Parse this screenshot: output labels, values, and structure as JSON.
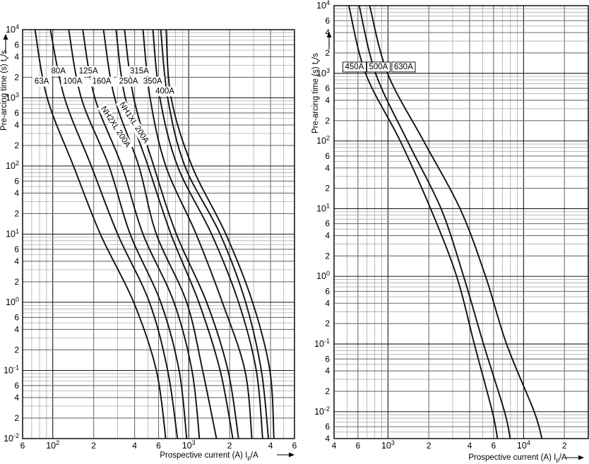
{
  "figure": {
    "description": "Fuse pre-arcing time vs prospective current characteristic curves",
    "background": "#ffffff",
    "curve_color": "#111111",
    "grid_major_color": "#1a1a1a",
    "grid_mid_color": "#6f6f6f",
    "grid_minor_color": "#9e9e9e"
  },
  "chart_data": [
    {
      "type": "line",
      "title": "",
      "xlabel": "Prospective current (A) I_p/A",
      "ylabel": "Pre-arcing time (s) t_v/s",
      "x_scale": "log",
      "y_scale": "log",
      "grid": "full log-log minor grid",
      "xlim": [
        60,
        6000
      ],
      "ylim": [
        0.01,
        10000
      ],
      "x_ticks": [
        {
          "v": 60,
          "l": "6"
        },
        {
          "v": 100,
          "l": "10^2"
        },
        {
          "v": 200,
          "l": "2"
        },
        {
          "v": 400,
          "l": "4"
        },
        {
          "v": 600,
          "l": "6"
        },
        {
          "v": 1000,
          "l": "10^3"
        },
        {
          "v": 2000,
          "l": "2"
        },
        {
          "v": 4000,
          "l": "4"
        },
        {
          "v": 6000,
          "l": "6"
        }
      ],
      "y_ticks": [
        {
          "v": 10000,
          "l": "10^4"
        },
        {
          "v": 6000,
          "l": "6"
        },
        {
          "v": 4000,
          "l": "4"
        },
        {
          "v": 2000,
          "l": "2"
        },
        {
          "v": 1000,
          "l": "10^3"
        },
        {
          "v": 600,
          "l": "6"
        },
        {
          "v": 400,
          "l": "4"
        },
        {
          "v": 200,
          "l": "2"
        },
        {
          "v": 100,
          "l": "10^2"
        },
        {
          "v": 60,
          "l": "6"
        },
        {
          "v": 40,
          "l": "4"
        },
        {
          "v": 20,
          "l": "2"
        },
        {
          "v": 10,
          "l": "10^1"
        },
        {
          "v": 6,
          "l": "6"
        },
        {
          "v": 4,
          "l": "4"
        },
        {
          "v": 2,
          "l": "2"
        },
        {
          "v": 1,
          "l": "10^0"
        },
        {
          "v": 0.6,
          "l": "6"
        },
        {
          "v": 0.4,
          "l": "4"
        },
        {
          "v": 0.2,
          "l": "2"
        },
        {
          "v": 0.1,
          "l": "10^-1"
        },
        {
          "v": 0.06,
          "l": "6"
        },
        {
          "v": 0.04,
          "l": "4"
        },
        {
          "v": 0.02,
          "l": "2"
        },
        {
          "v": 0.01,
          "l": "10^-2"
        }
      ],
      "series": [
        {
          "name": "63A",
          "points": [
            [
              74,
              10000
            ],
            [
              91,
              1000
            ],
            [
              142,
              100
            ],
            [
              224,
              10
            ],
            [
              394,
              1
            ],
            [
              578,
              0.1
            ],
            [
              678,
              0.01
            ]
          ]
        },
        {
          "name": "80A",
          "points": [
            [
              96,
              10000
            ],
            [
              122,
              1000
            ],
            [
              192,
              100
            ],
            [
              300,
              10
            ],
            [
              514,
              1
            ],
            [
              700,
              0.1
            ],
            [
              827,
              0.01
            ]
          ]
        },
        {
          "name": "100A",
          "points": [
            [
              131,
              10000
            ],
            [
              162,
              1000
            ],
            [
              259,
              100
            ],
            [
              371,
              10
            ],
            [
              623,
              1
            ],
            [
              850,
              0.1
            ],
            [
              966,
              0.01
            ]
          ]
        },
        {
          "name": "125A",
          "points": [
            [
              166,
              10000
            ],
            [
              204,
              1000
            ],
            [
              322,
              100
            ],
            [
              461,
              10
            ],
            [
              779,
              1
            ],
            [
              1056,
              0.1
            ],
            [
              1200,
              0.01
            ]
          ]
        },
        {
          "name": "160A",
          "points": [
            [
              236,
              10000
            ],
            [
              285,
              1000
            ],
            [
              429,
              100
            ],
            [
              578,
              10
            ],
            [
              966,
              1
            ],
            [
              1265,
              0.1
            ],
            [
              1600,
              0.01
            ]
          ]
        },
        {
          "name": "NH2XL 200A",
          "points": [
            [
              292,
              10000
            ],
            [
              341,
              1000
            ],
            [
              502,
              100
            ],
            [
              740,
              10
            ],
            [
              1186,
              1
            ],
            [
              1702,
              0.1
            ],
            [
              2111,
              0.01
            ]
          ]
        },
        {
          "name": "NH1XL 200A",
          "points": [
            [
              337,
              10000
            ],
            [
              394,
              1000
            ],
            [
              553,
              100
            ],
            [
              811,
              10
            ],
            [
              1355,
              1
            ],
            [
              1944,
              0.1
            ],
            [
              2327,
              0.01
            ]
          ]
        },
        {
          "name": "250A",
          "points": [
            [
              461,
              10000
            ],
            [
              520,
              1000
            ],
            [
              678,
              100
            ],
            [
              1134,
              10
            ],
            [
              1766,
              1
            ],
            [
              2590,
              0.1
            ],
            [
              2917,
              0.01
            ]
          ]
        },
        {
          "name": "315A",
          "points": [
            [
              545,
              10000
            ],
            [
              614,
              1000
            ],
            [
              827,
              100
            ],
            [
              1473,
              10
            ],
            [
              2327,
              1
            ],
            [
              3142,
              0.1
            ],
            [
              3500,
              0.01
            ]
          ]
        },
        {
          "name": "350A",
          "points": [
            [
              623,
              10000
            ],
            [
              700,
              1000
            ],
            [
              936,
              100
            ],
            [
              1702,
              10
            ],
            [
              2623,
              1
            ],
            [
              3420,
              0.1
            ],
            [
              3857,
              0.01
            ]
          ]
        },
        {
          "name": "400A",
          "points": [
            [
              682,
              10000
            ],
            [
              742,
              1000
            ],
            [
              1056,
              100
            ],
            [
              1876,
              10
            ],
            [
              2950,
              1
            ],
            [
              3950,
              0.1
            ],
            [
              4234,
              0.01
            ]
          ]
        }
      ],
      "curve_labels": [
        {
          "text": "63A",
          "I": 83,
          "t": 1770,
          "rot": 0,
          "boxed": false
        },
        {
          "text": "80A",
          "I": 110,
          "t": 2520,
          "rot": 0,
          "boxed": false
        },
        {
          "text": "100A",
          "I": 140,
          "t": 1770,
          "rot": 0,
          "boxed": false
        },
        {
          "text": "125A",
          "I": 183,
          "t": 2520,
          "rot": 0,
          "boxed": false
        },
        {
          "text": "160A",
          "I": 229,
          "t": 1770,
          "rot": 0,
          "boxed": false
        },
        {
          "text": "250A",
          "I": 361,
          "t": 1770,
          "rot": 0,
          "boxed": false
        },
        {
          "text": "315A",
          "I": 434,
          "t": 2520,
          "rot": 0,
          "boxed": false
        },
        {
          "text": "350A",
          "I": 543,
          "t": 1770,
          "rot": 0,
          "boxed": false
        },
        {
          "text": "400A",
          "I": 668,
          "t": 1270,
          "rot": 0,
          "boxed": false
        },
        {
          "text": "NH2XL 200A",
          "I": 292,
          "t": 378,
          "rot": 57,
          "boxed": false
        },
        {
          "text": "NH1XL 200A",
          "I": 399,
          "t": 436,
          "rot": 57,
          "boxed": false
        }
      ]
    },
    {
      "type": "line",
      "title": "",
      "xlabel": "Prospective current (A) I_p/A",
      "ylabel": "Pre-arcing time (s) t_v/s",
      "x_scale": "log",
      "y_scale": "log",
      "grid": "full log-log minor grid",
      "xlim": [
        400,
        30000
      ],
      "ylim": [
        0.004,
        10000
      ],
      "x_ticks": [
        {
          "v": 400,
          "l": "4"
        },
        {
          "v": 600,
          "l": "6"
        },
        {
          "v": 1000,
          "l": "10^3"
        },
        {
          "v": 2000,
          "l": "2"
        },
        {
          "v": 4000,
          "l": "4"
        },
        {
          "v": 6000,
          "l": "6"
        },
        {
          "v": 10000,
          "l": "10^4"
        },
        {
          "v": 20000,
          "l": "2"
        }
      ],
      "y_ticks": [
        {
          "v": 10000,
          "l": "10^4"
        },
        {
          "v": 6000,
          "l": "6"
        },
        {
          "v": 4000,
          "l": "4"
        },
        {
          "v": 2000,
          "l": "2"
        },
        {
          "v": 1000,
          "l": "10^3"
        },
        {
          "v": 600,
          "l": "6"
        },
        {
          "v": 400,
          "l": "4"
        },
        {
          "v": 200,
          "l": "2"
        },
        {
          "v": 100,
          "l": "10^2"
        },
        {
          "v": 60,
          "l": "6"
        },
        {
          "v": 40,
          "l": "4"
        },
        {
          "v": 20,
          "l": "2"
        },
        {
          "v": 10,
          "l": "10^1"
        },
        {
          "v": 6,
          "l": "6"
        },
        {
          "v": 4,
          "l": "4"
        },
        {
          "v": 2,
          "l": "2"
        },
        {
          "v": 1,
          "l": "10^0"
        },
        {
          "v": 0.6,
          "l": "6"
        },
        {
          "v": 0.4,
          "l": "4"
        },
        {
          "v": 0.2,
          "l": "2"
        },
        {
          "v": 0.1,
          "l": "10^-1"
        },
        {
          "v": 0.06,
          "l": "6"
        },
        {
          "v": 0.04,
          "l": "4"
        },
        {
          "v": 0.02,
          "l": "2"
        },
        {
          "v": 0.01,
          "l": "10^-2"
        },
        {
          "v": 0.006,
          "l": "6"
        },
        {
          "v": 0.004,
          "l": "4"
        }
      ],
      "series": [
        {
          "name": "450A",
          "points": [
            [
              514,
              10000
            ],
            [
              683,
              1000
            ],
            [
              1231,
              100
            ],
            [
              2060,
              10
            ],
            [
              3210,
              1
            ],
            [
              4330,
              0.1
            ],
            [
              5880,
              0.01
            ],
            [
              6420,
              0.004
            ]
          ]
        },
        {
          "name": "500A",
          "points": [
            [
              613,
              10000
            ],
            [
              810,
              1000
            ],
            [
              1390,
              100
            ],
            [
              2460,
              10
            ],
            [
              3610,
              1
            ],
            [
              5060,
              0.1
            ],
            [
              7230,
              0.01
            ],
            [
              7960,
              0.004
            ]
          ]
        },
        {
          "name": "630A",
          "points": [
            [
              732,
              10000
            ],
            [
              992,
              1000
            ],
            [
              1830,
              100
            ],
            [
              3400,
              10
            ],
            [
              5240,
              1
            ],
            [
              7480,
              0.1
            ],
            [
              11970,
              0.01
            ],
            [
              13640,
              0.004
            ]
          ]
        }
      ],
      "curve_labels": [
        {
          "text": "450A",
          "I": 566,
          "t": 1270,
          "rot": 0,
          "boxed": true
        },
        {
          "text": "500A",
          "I": 850,
          "t": 1270,
          "rot": 0,
          "boxed": true
        },
        {
          "text": "630A",
          "I": 1300,
          "t": 1270,
          "rot": 0,
          "boxed": true
        }
      ]
    }
  ]
}
